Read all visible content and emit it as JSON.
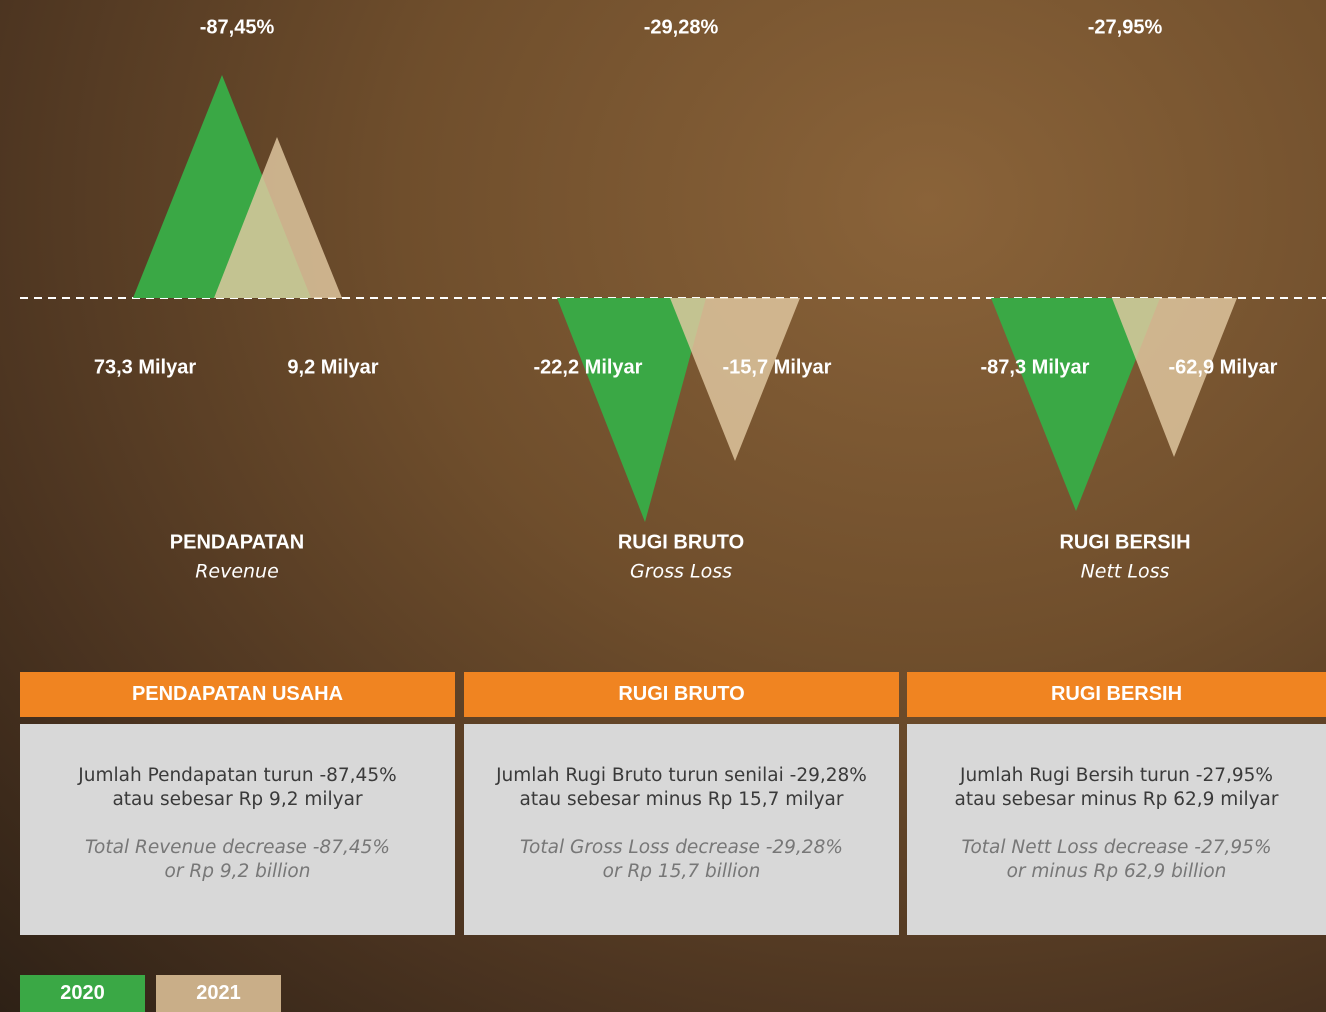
{
  "groups": [
    {
      "change": "-87,45%",
      "value_2020": "73,3 Milyar",
      "value_2021": "9,2 Milyar",
      "title": "PENDAPATAN",
      "subtitle": "Revenue"
    },
    {
      "change": "-29,28%",
      "value_2020": "-22,2 Milyar",
      "value_2021": "-15,7 Milyar",
      "title": "RUGI BRUTO",
      "subtitle": "Gross Loss"
    },
    {
      "change": "-27,95%",
      "value_2020": "-87,3 Milyar",
      "value_2021": "-62,9 Milyar",
      "title": "RUGI BERSIH",
      "subtitle": "Nett Loss"
    }
  ],
  "cards": [
    {
      "heading": "PENDAPATAN USAHA",
      "lines": [
        "Jumlah Pendapatan turun -87,45%",
        "atau sebesar Rp 9,2 milyar"
      ],
      "english_lines": [
        "Total Revenue decrease -87,45%",
        "or Rp 9,2 billion"
      ]
    },
    {
      "heading": "RUGI BRUTO",
      "lines": [
        "Jumlah Rugi Bruto turun senilai -29,28%",
        "atau sebesar minus Rp 15,7 milyar"
      ],
      "english_lines": [
        "Total Gross Loss decrease -29,28%",
        "or Rp 15,7 billion"
      ]
    },
    {
      "heading": "RUGI BERSIH",
      "lines": [
        "Jumlah Rugi Bersih turun -27,95%",
        "atau sebesar minus Rp 62,9 milyar"
      ],
      "english_lines": [
        "Total Nett Loss decrease -27,95%",
        "or minus Rp 62,9 billion"
      ]
    }
  ],
  "legend": [
    "2020",
    "2021"
  ]
}
